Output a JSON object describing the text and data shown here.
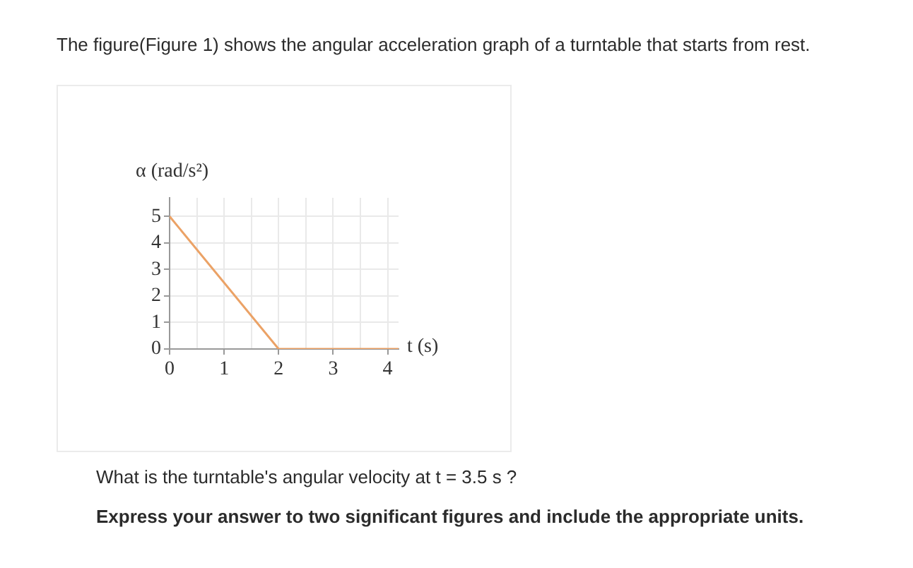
{
  "chart_data": {
    "type": "line",
    "title": "The figure(Figure 1) shows the angular acceleration graph of a turntable that starts from rest.",
    "xlabel": "t (s)",
    "ylabel": "α (rad/s²)",
    "annotations": [
      "What is the turntable's angular velocity at t = 3.5 s ?",
      "Express your answer to two significant figures and include the appropriate units."
    ],
    "x": [
      0,
      2,
      4.2
    ],
    "series": [
      {
        "color": "#eba266",
        "values": [
          5,
          0,
          0
        ]
      }
    ],
    "xlim": [
      0,
      4.2
    ],
    "ylim": [
      0,
      5.7
    ],
    "xticks": [
      0,
      {
        "value": 0.5,
        "label": null
      },
      1,
      {
        "value": 1.5,
        "label": null
      },
      2,
      {
        "value": 2.5,
        "label": null
      },
      3,
      {
        "value": 3.5,
        "label": null
      },
      4
    ],
    "yticks": [
      0,
      1,
      2,
      3,
      4,
      5
    ],
    "grid": true,
    "legend": false,
    "marker": "none",
    "line_style": "solid"
  }
}
